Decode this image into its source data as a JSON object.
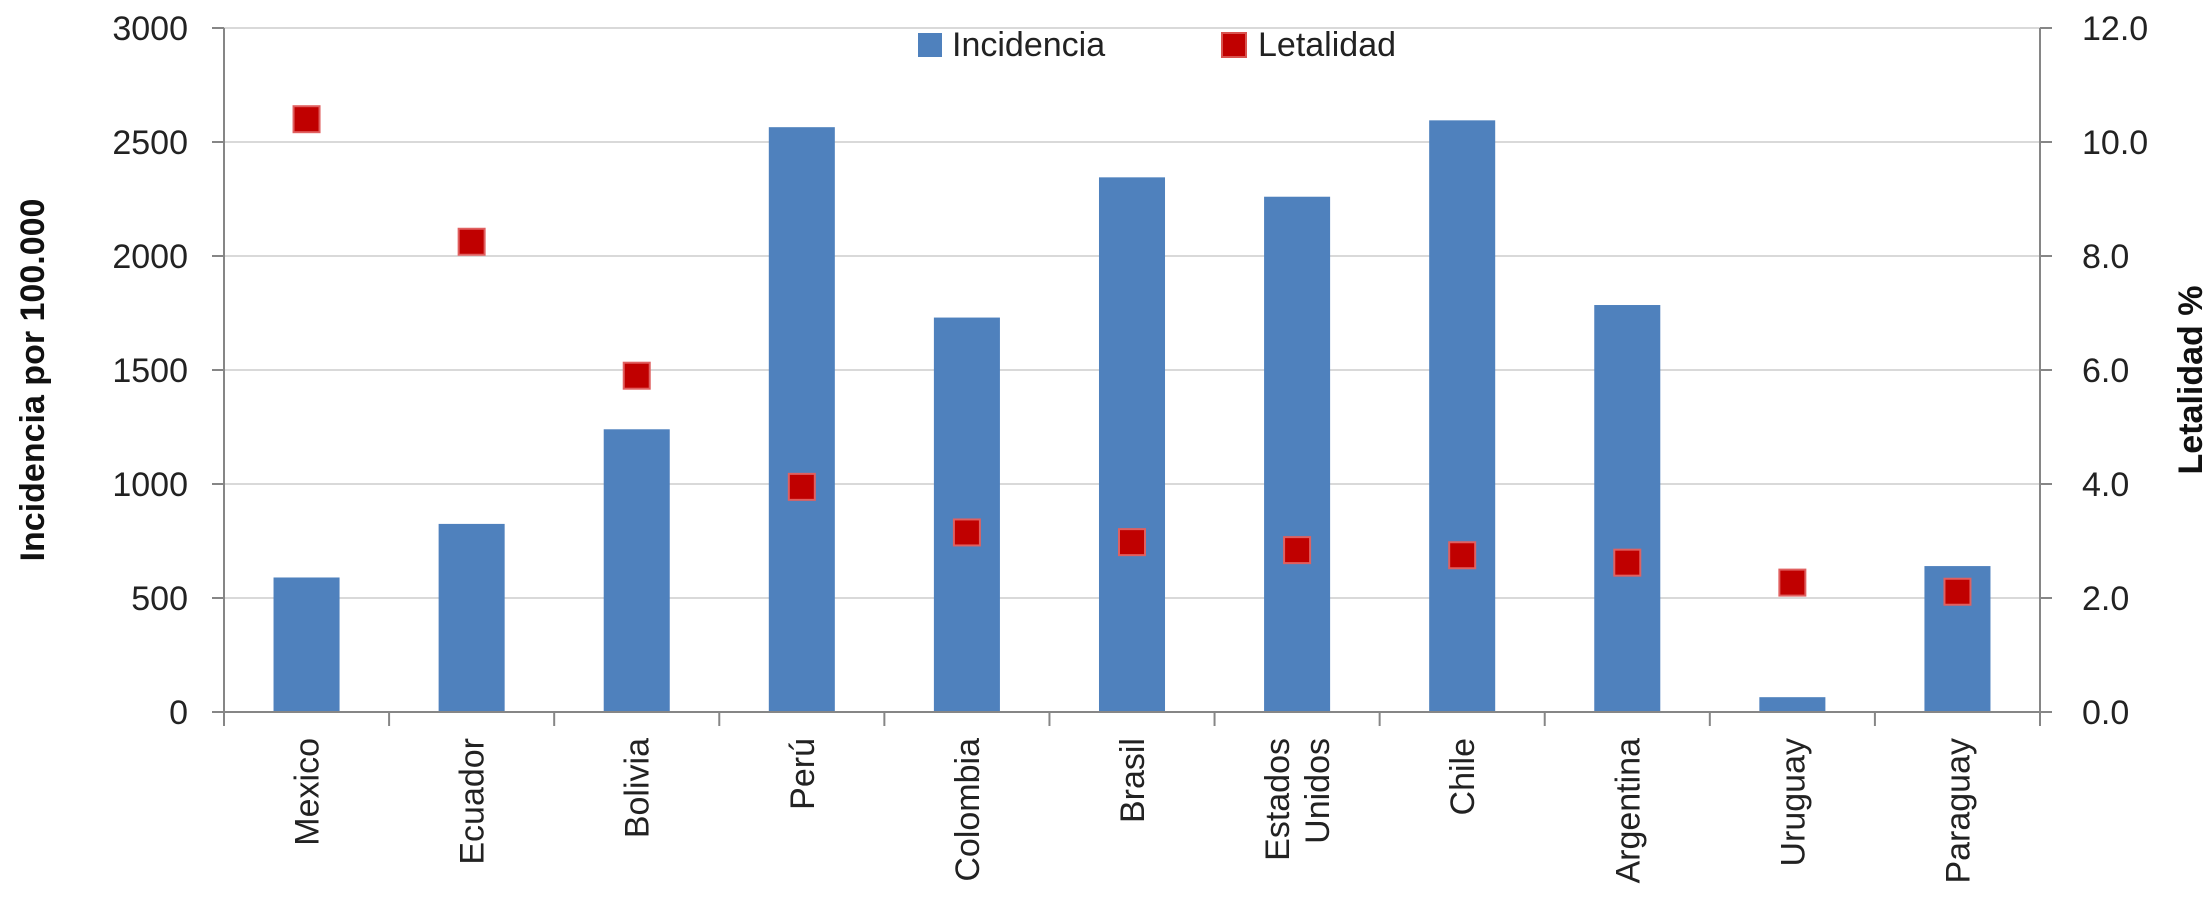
{
  "chart_data": {
    "type": "bar",
    "categories": [
      "Mexico",
      "Ecuador",
      "Bolivia",
      "Perú",
      "Colombia",
      "Brasil",
      "Estados Unidos",
      "Chile",
      "Argentina",
      "Uruguay",
      "Paraguay"
    ],
    "category_lines": [
      [
        "Mexico"
      ],
      [
        "Ecuador"
      ],
      [
        "Bolivia"
      ],
      [
        "Perú"
      ],
      [
        "Colombia"
      ],
      [
        "Brasil"
      ],
      [
        "Estados",
        "Unidos"
      ],
      [
        "Chile"
      ],
      [
        "Argentina"
      ],
      [
        "Uruguay"
      ],
      [
        "Paraguay"
      ]
    ],
    "series": [
      {
        "name": "Incidencia",
        "type": "bar",
        "axis": "left",
        "color": "#4F81BD",
        "values": [
          590,
          825,
          1240,
          2565,
          1730,
          2345,
          2260,
          2595,
          1785,
          65,
          640
        ]
      },
      {
        "name": "Letalidad",
        "type": "scatter",
        "axis": "right",
        "color": "#C00000",
        "values": [
          10.4,
          8.25,
          5.9,
          3.95,
          3.15,
          2.98,
          2.84,
          2.75,
          2.62,
          2.27,
          2.11
        ]
      }
    ],
    "ylabel": "Incidencia  por 100.000",
    "y2label": "Letalidad %",
    "ylim": [
      0,
      3000
    ],
    "y2lim": [
      0,
      12
    ],
    "yticks": [
      "0",
      "500",
      "1000",
      "1500",
      "2000",
      "2500",
      "3000"
    ],
    "y2ticks": [
      "0.0",
      "2.0",
      "4.0",
      "6.0",
      "8.0",
      "10.0",
      "12.0"
    ],
    "grid": true,
    "legend_position": "top-center"
  }
}
